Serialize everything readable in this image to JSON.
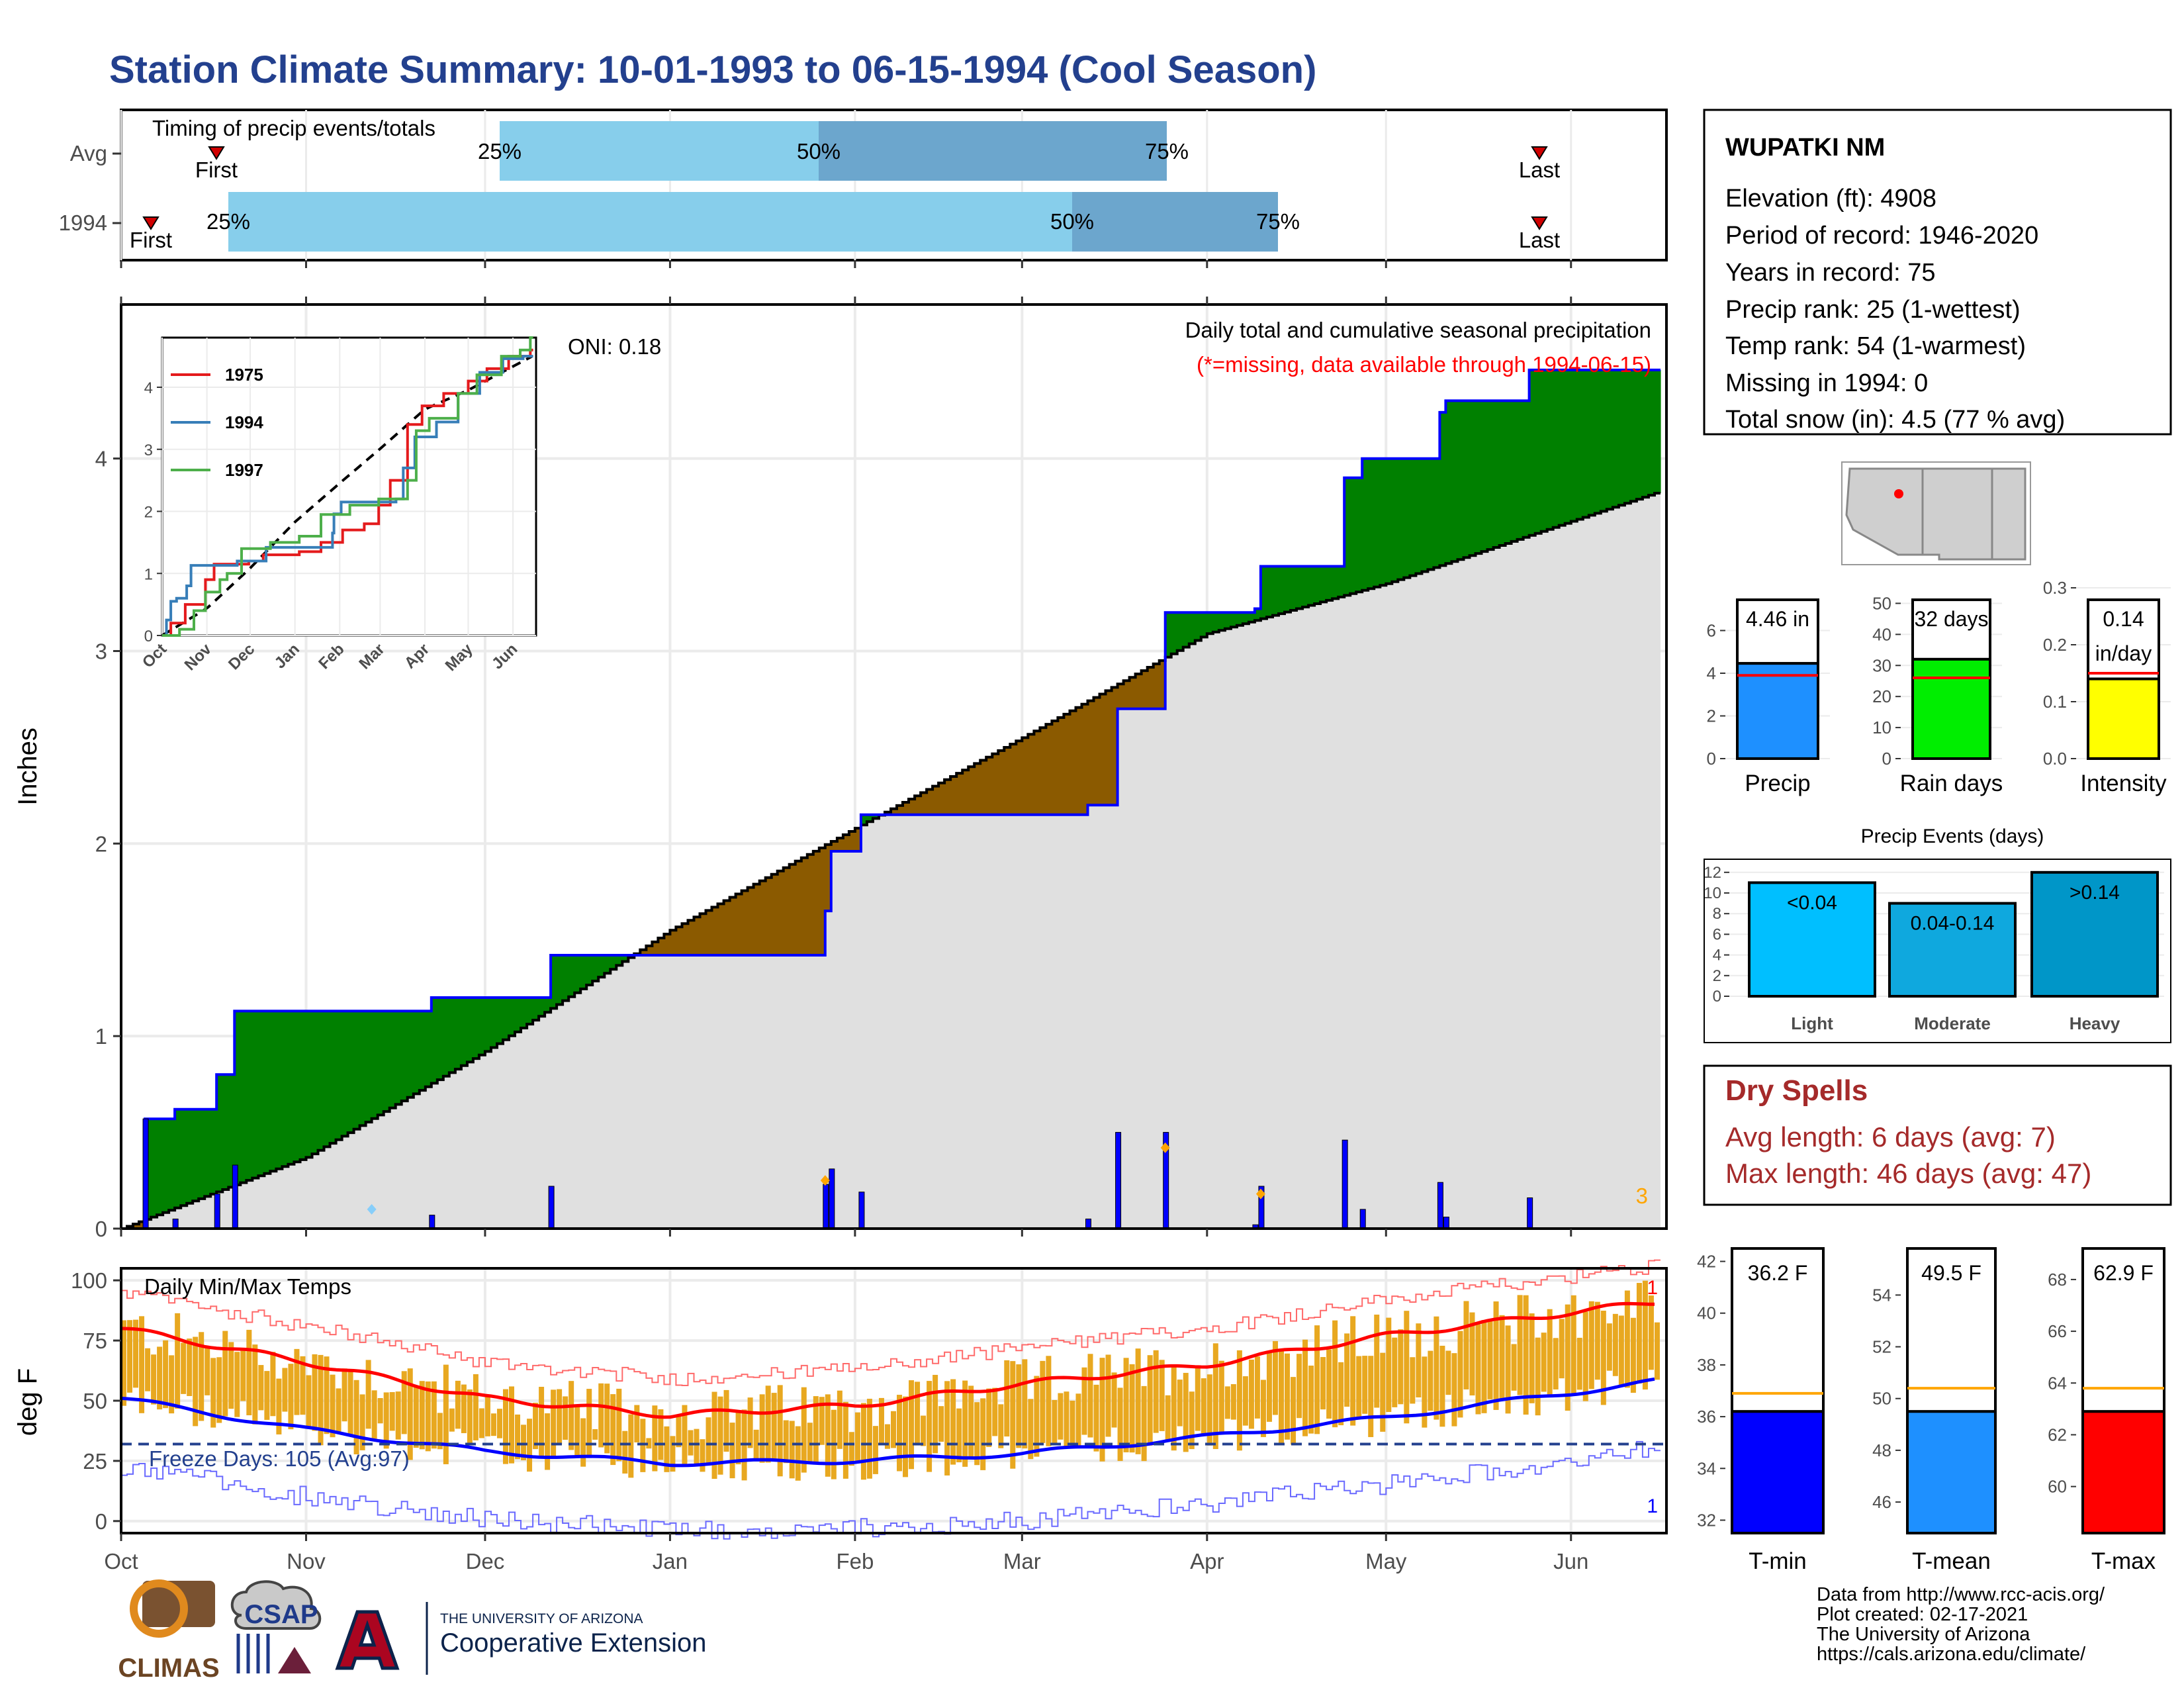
{
  "title": "Station Climate Summary: 10-01-1993 to 06-15-1994 (Cool Season)",
  "timing_panel": {
    "label": "Timing of precip events/totals",
    "rows": [
      {
        "name": "Avg",
        "first_label": "First",
        "last_label": "Last",
        "p25": "25%",
        "p50": "50%",
        "p75": "75%"
      },
      {
        "name": "1994",
        "first_label": "First",
        "last_label": "Last",
        "p25": "25%",
        "p50": "50%",
        "p75": "75%"
      }
    ]
  },
  "main_panel": {
    "ylabel": "Inches",
    "oni": "ONI: 0.18",
    "caption": "Daily total and cumulative seasonal precipitation",
    "missing_note": "(*=missing, data available through 1994-06-15)",
    "corner_count": "3",
    "yticks": [
      "0",
      "1",
      "2",
      "3",
      "4"
    ]
  },
  "months": [
    "Oct",
    "Nov",
    "Dec",
    "Jan",
    "Feb",
    "Mar",
    "Apr",
    "May",
    "Jun"
  ],
  "inset": {
    "legend": [
      "1975",
      "1994",
      "1997"
    ],
    "colors": [
      "#e41a1c",
      "#377eb8",
      "#4daf4a"
    ],
    "yticks": [
      "0",
      "1",
      "2",
      "3",
      "4"
    ],
    "months": [
      "Oct",
      "Nov",
      "Dec",
      "Jan",
      "Feb",
      "Mar",
      "Apr",
      "May",
      "Jun"
    ]
  },
  "temp_panel": {
    "label": "Daily Min/Max Temps",
    "ylabel": "deg F",
    "freeze": "Freeze Days: 105 (Avg:97)",
    "yticks": [
      "0",
      "25",
      "50",
      "75",
      "100"
    ],
    "top_count": "1",
    "bottom_count": "1"
  },
  "station": {
    "name": "WUPATKI NM",
    "lines": [
      "Elevation (ft): 4908",
      "Period of record: 1946-2020",
      "Years in record: 75",
      "Precip rank: 25 (1-wettest)",
      "Temp rank: 54 (1-warmest)",
      "Missing in 1994: 0",
      "Total snow (in): 4.5 (77 % avg)"
    ]
  },
  "summary_bars": [
    {
      "label": "Precip",
      "value_text": "4.46 in",
      "value": 4.46,
      "avg": 3.9,
      "max": 8,
      "ticks": [
        "0",
        "2",
        "4",
        "6"
      ],
      "color": "#1e90ff"
    },
    {
      "label": "Rain days",
      "value_text": "32 days",
      "value": 32,
      "avg": 26,
      "max": 55,
      "ticks": [
        "0",
        "10",
        "20",
        "30",
        "40",
        "50"
      ],
      "color": "#00ee00"
    },
    {
      "label": "Intensity",
      "value_text": "0.14",
      "value_text2": "in/day",
      "value": 0.14,
      "avg": 0.15,
      "max": 0.3,
      "ticks": [
        "0.0",
        "0.1",
        "0.2",
        "0.3"
      ],
      "color": "#ffff00"
    }
  ],
  "precip_events": {
    "title": "Precip Events (days)",
    "yticks": [
      "0",
      "2",
      "4",
      "6",
      "8",
      "10",
      "12"
    ],
    "bars": [
      {
        "label": "Light",
        "bar_text": "<0.04",
        "value": 11,
        "color": "#00bfff"
      },
      {
        "label": "Moderate",
        "bar_text": "0.04-0.14",
        "value": 9,
        "color": "#0fa8de"
      },
      {
        "label": "Heavy",
        "bar_text": ">0.14",
        "value": 12,
        "color": "#0096c8"
      }
    ]
  },
  "dry_spells": {
    "title": "Dry Spells",
    "avg": "Avg length: 6 days (avg: 7)",
    "max": "Max length: 46 days (avg: 47)"
  },
  "temp_bars": [
    {
      "label": "T-min",
      "value_text": "36.2 F",
      "value": 36.2,
      "avg": 36.9,
      "ymin": 31.5,
      "ymax": 42.5,
      "ticks": [
        "32",
        "34",
        "36",
        "38",
        "40",
        "42"
      ],
      "color": "#0000ff"
    },
    {
      "label": "T-mean",
      "value_text": "49.5 F",
      "value": 49.5,
      "avg": 50.4,
      "ymin": 44.8,
      "ymax": 55.8,
      "ticks": [
        "46",
        "48",
        "50",
        "52",
        "54"
      ],
      "color": "#1e90ff"
    },
    {
      "label": "T-max",
      "value_text": "62.9 F",
      "value": 62.9,
      "avg": 63.8,
      "ymin": 58.2,
      "ymax": 69.2,
      "ticks": [
        "60",
        "62",
        "64",
        "66",
        "68"
      ],
      "color": "#ff0000"
    }
  ],
  "footer": {
    "lines": [
      "Data from http://www.rcc-acis.org/",
      "Plot created: 02-17-2021",
      "The University of Arizona",
      "https://cals.arizona.edu/climate/"
    ],
    "logo_climas": "CLIMAS",
    "logo_csap": "CSAP",
    "ext_small": "THE UNIVERSITY OF ARIZONA",
    "ext_big": "Cooperative Extension"
  },
  "chart_data": [
    {
      "type": "area",
      "title": "Daily total and cumulative seasonal precipitation",
      "ylabel": "Inches",
      "ylim": [
        0,
        4.8
      ],
      "series": [
        {
          "name": "1994",
          "x": [
            "1993-10-01",
            "1993-10-05",
            "1993-10-10",
            "1993-10-17",
            "1993-10-20",
            "1993-11-22",
            "1993-12-12",
            "1994-01-27",
            "1994-01-28",
            "1994-02-02",
            "1994-03-12",
            "1994-03-17",
            "1994-03-25",
            "1994-04-09",
            "1994-04-10",
            "1994-04-24",
            "1994-04-27",
            "1994-05-10",
            "1994-05-11",
            "1994-05-25",
            "1994-06-15"
          ],
          "values": [
            0,
            0.57,
            0.62,
            0.8,
            1.13,
            1.2,
            1.42,
            1.65,
            1.96,
            2.15,
            2.2,
            2.7,
            3.2,
            3.22,
            3.44,
            3.9,
            4.0,
            4.24,
            4.3,
            4.46,
            4.46
          ]
        },
        {
          "name": "Avg",
          "x": [
            "1993-10-01",
            "1993-11-01",
            "1993-12-01",
            "1994-01-01",
            "1994-02-01",
            "1994-03-01",
            "1994-04-01",
            "1994-05-01",
            "1994-06-15"
          ],
          "values": [
            0,
            0.37,
            0.92,
            1.55,
            2.08,
            2.55,
            3.09,
            3.35,
            3.82
          ]
        }
      ]
    },
    {
      "type": "line",
      "title": "Daily Min/Max Temps",
      "ylabel": "deg F",
      "ylim": [
        -5,
        105
      ],
      "series": [
        {
          "name": "Avg max",
          "x": [
            "1993-10-01",
            "1993-11-01",
            "1993-12-01",
            "1994-01-01",
            "1994-02-01",
            "1994-03-01",
            "1994-04-01",
            "1994-05-01",
            "1994-06-15"
          ],
          "values": [
            80,
            66,
            51,
            44,
            48,
            57,
            65,
            77,
            91
          ]
        },
        {
          "name": "Avg min",
          "x": [
            "1993-10-01",
            "1993-11-01",
            "1993-12-01",
            "1994-01-01",
            "1994-02-01",
            "1994-03-01",
            "1994-04-01",
            "1994-05-01",
            "1994-06-15"
          ],
          "values": [
            51,
            38,
            29,
            24,
            25,
            28,
            35,
            43,
            58
          ]
        }
      ]
    }
  ]
}
